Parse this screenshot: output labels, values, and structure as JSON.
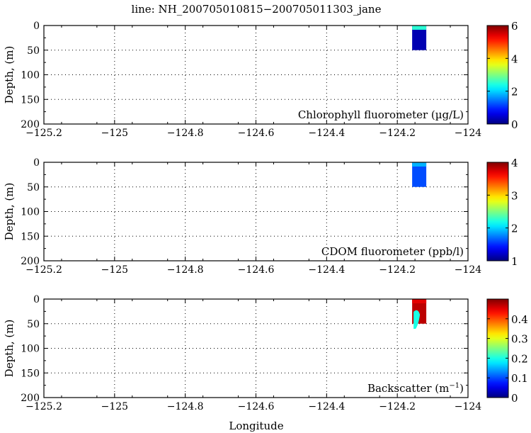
{
  "chart_data": {
    "type": "heatmap",
    "title": "line: NH_200705010815−200705011303_jane",
    "xlabel": "Longitude",
    "xlim": [
      -125.2,
      -124
    ],
    "xticks": [
      "−125.2",
      "−125",
      "−124.8",
      "−124.6",
      "−124.4",
      "−124.2",
      "−124"
    ],
    "grid": true,
    "panels": [
      {
        "label": "Chlorophyll fluorometer (µg/L)",
        "ylabel": "Depth, (m)",
        "ylim": [
          200,
          0
        ],
        "yticks": [
          "0",
          "50",
          "100",
          "150",
          "200"
        ],
        "clim": [
          0,
          6
        ],
        "cticks": [
          "0",
          "2",
          "4",
          "6"
        ],
        "data_extent": {
          "lon": [
            -124.158,
            -124.118
          ],
          "depth": [
            0,
            50
          ]
        },
        "dominant_value": 0.3,
        "surface_value": 2.5
      },
      {
        "label": "CDOM fluorometer (ppb/l)",
        "ylabel": "Depth, (m)",
        "ylim": [
          200,
          0
        ],
        "yticks": [
          "0",
          "50",
          "100",
          "150",
          "200"
        ],
        "clim": [
          1,
          4
        ],
        "cticks": [
          "1",
          "2",
          "3",
          "4"
        ],
        "data_extent": {
          "lon": [
            -124.158,
            -124.118
          ],
          "depth": [
            0,
            50
          ]
        },
        "dominant_value": 1.6,
        "surface_value": 1.9
      },
      {
        "label": "Backscatter (m",
        "label_sup": "−1",
        "label_end": ")",
        "ylabel": "Depth, (m)",
        "ylim": [
          200,
          0
        ],
        "yticks": [
          "0",
          "50",
          "100",
          "150",
          "200"
        ],
        "clim": [
          0,
          0.5
        ],
        "cticks": [
          "0",
          "0.1",
          "0.2",
          "0.3",
          "0.4"
        ],
        "cvals": [
          0,
          0.1,
          0.2,
          0.3,
          0.4
        ],
        "data_extent": {
          "lon": [
            -124.158,
            -124.118
          ],
          "depth": [
            0,
            50
          ]
        },
        "dominant_value": 0.47,
        "surface_value": 0.45
      }
    ]
  }
}
